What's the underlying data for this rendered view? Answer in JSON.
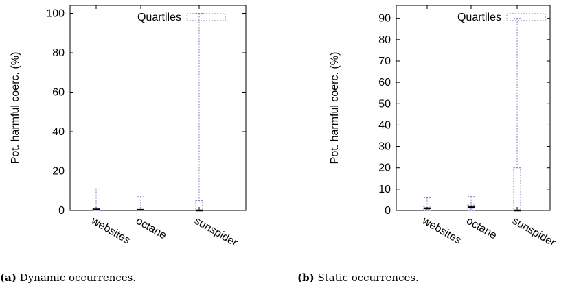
{
  "colors": {
    "box": "#7777bb",
    "median": "#000000",
    "axis": "#000000"
  },
  "legend": {
    "label": "Quartiles"
  },
  "captions": [
    {
      "tag": "(a)",
      "text": "Dynamic occurrences."
    },
    {
      "tag": "(b)",
      "text": "Static occurrences."
    }
  ],
  "chart_data": [
    {
      "type": "box",
      "title": "",
      "ylabel": "Pot. harmful coerc. (%)",
      "xlabel": "",
      "ylim": [
        0,
        104
      ],
      "yticks": [
        0,
        20,
        40,
        60,
        80,
        100
      ],
      "legend": {
        "label": "Quartiles",
        "position": "top-right"
      },
      "categories": [
        "websites",
        "octane",
        "sunspider"
      ],
      "boxes": [
        {
          "category": "websites",
          "min": 0,
          "q1": 0,
          "median": 0.5,
          "q3": 1,
          "max": 11
        },
        {
          "category": "octane",
          "min": 0,
          "q1": 0,
          "median": 0.3,
          "q3": 0.5,
          "max": 7
        },
        {
          "category": "sunspider",
          "min": 0,
          "q1": 0,
          "median": 0,
          "q3": 5,
          "max": 100
        }
      ]
    },
    {
      "type": "box",
      "title": "",
      "ylabel": "Pot. harmful coerc. (%)",
      "xlabel": "",
      "ylim": [
        0,
        96
      ],
      "yticks": [
        0,
        10,
        20,
        30,
        40,
        50,
        60,
        70,
        80,
        90
      ],
      "legend": {
        "label": "Quartiles",
        "position": "top-right"
      },
      "categories": [
        "websites",
        "octane",
        "sunspider"
      ],
      "boxes": [
        {
          "category": "websites",
          "min": 0,
          "q1": 0.5,
          "median": 1,
          "q3": 2,
          "max": 6
        },
        {
          "category": "octane",
          "min": 0,
          "q1": 1,
          "median": 1.5,
          "q3": 2.5,
          "max": 6.5
        },
        {
          "category": "sunspider",
          "min": 0,
          "q1": 0,
          "median": 0,
          "q3": 20,
          "max": 90
        }
      ]
    }
  ]
}
